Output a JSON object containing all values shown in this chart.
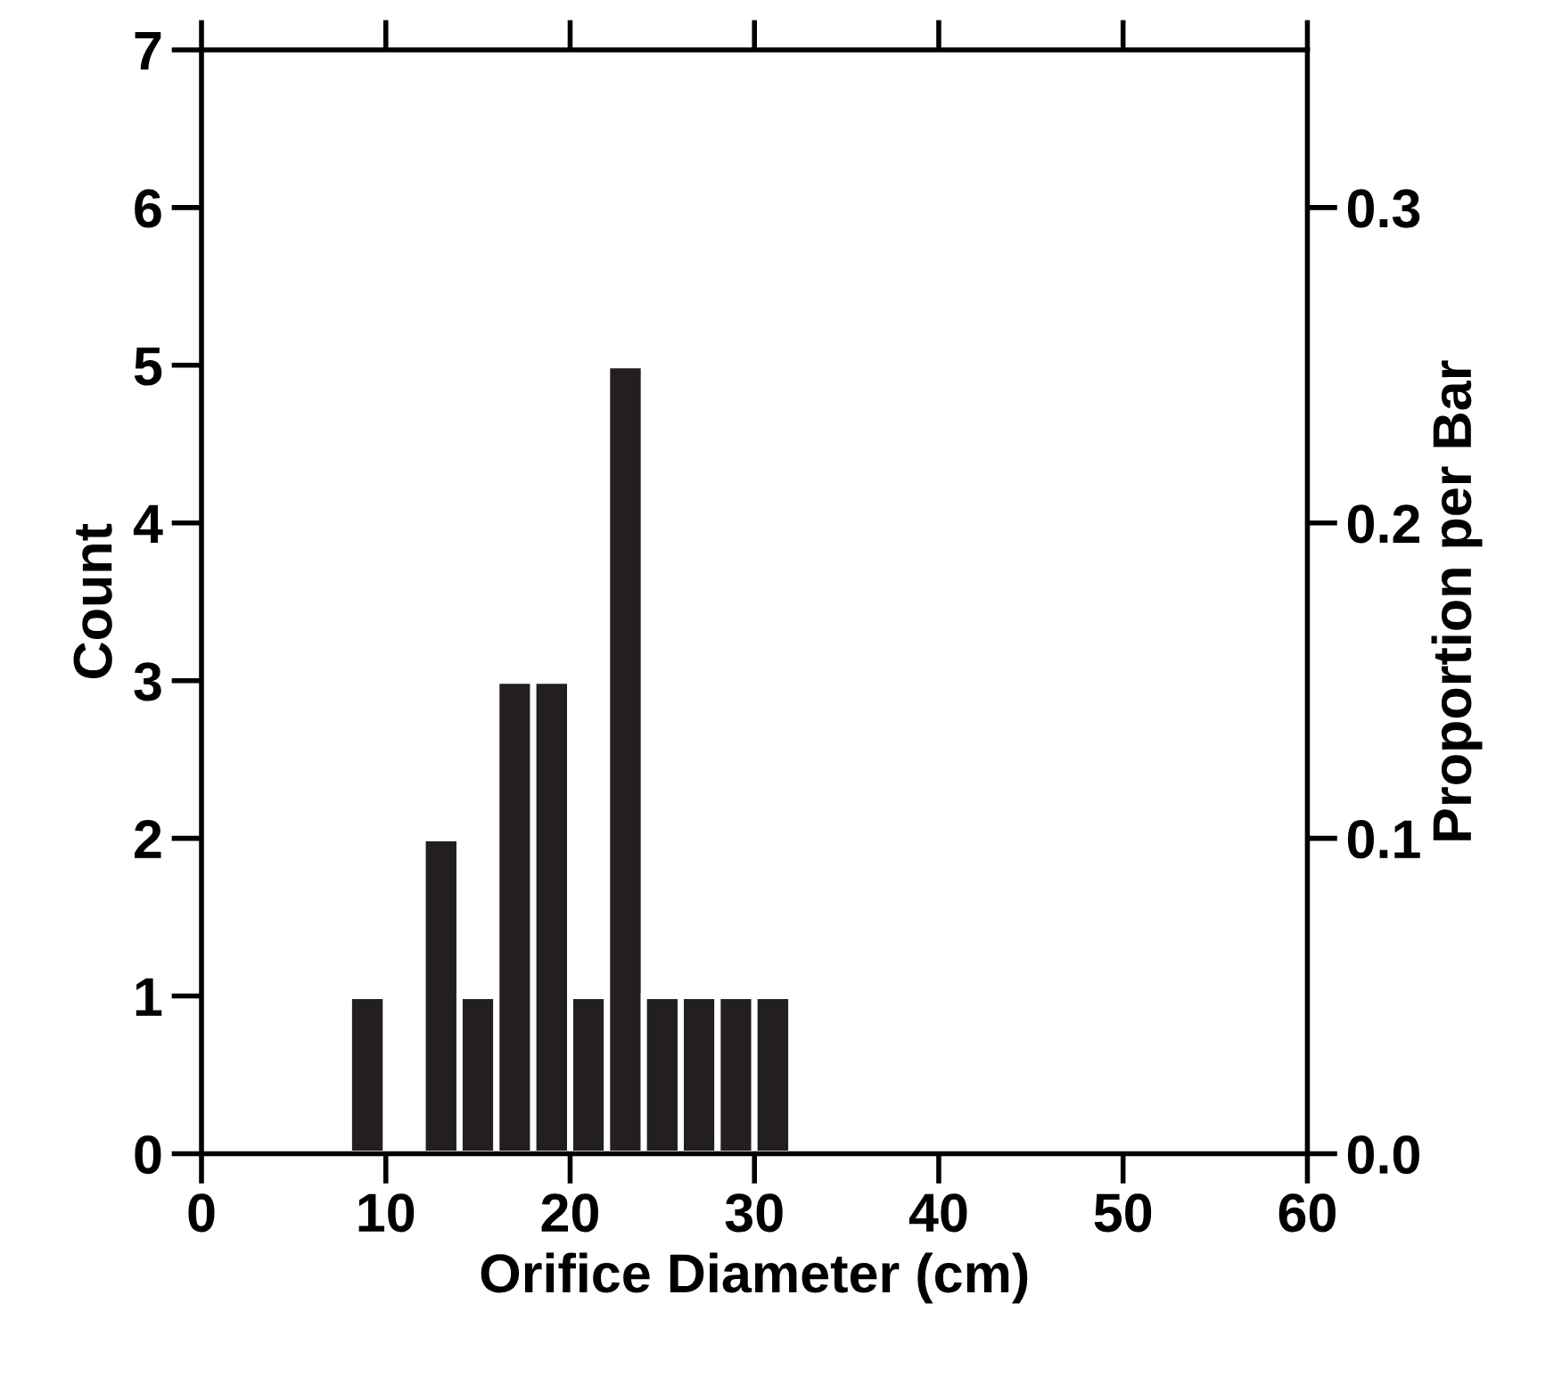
{
  "chart_data": {
    "type": "histogram",
    "xlabel": "Orifice Diameter (cm)",
    "ylabel": "Count",
    "y2label": "Proportion per Bar",
    "bins": [
      8,
      10,
      12,
      14,
      16,
      18,
      20,
      22,
      24,
      26,
      28,
      30,
      32
    ],
    "values": [
      1,
      0,
      2,
      1,
      3,
      3,
      1,
      5,
      1,
      1,
      1,
      1
    ],
    "color": "#231f20",
    "xlim": [
      0,
      60
    ],
    "xticks": [
      0,
      10,
      20,
      30,
      40,
      50,
      60
    ],
    "ylim": [
      0,
      7
    ],
    "yticks": [
      0,
      1,
      2,
      3,
      4,
      5,
      6,
      7
    ],
    "y2lim": [
      0,
      0.35
    ],
    "y2ticks": [
      {
        "value": 0,
        "label": "0.0"
      },
      0.1,
      0.2,
      0.3
    ],
    "grid": false,
    "legend": false
  }
}
